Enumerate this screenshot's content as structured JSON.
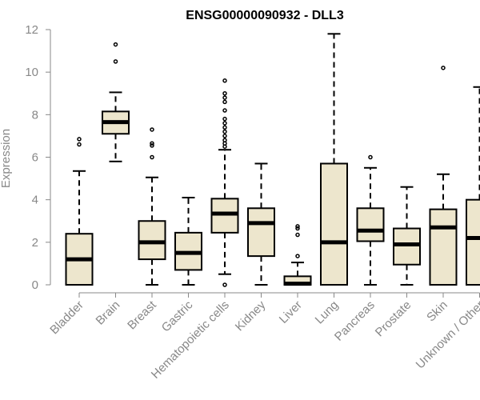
{
  "chart_data": {
    "type": "boxplot",
    "title": "ENSG00000090932 - DLL3",
    "xlabel": "",
    "ylabel": "Expression",
    "ylim": [
      0,
      12
    ],
    "yticks": [
      "0",
      "2",
      "4",
      "6",
      "8",
      "10",
      "12"
    ],
    "box_color": "#ede6cd",
    "categories": [
      "Bladder",
      "Brain",
      "Breast",
      "Gastric",
      "Hematopoietic cells",
      "Kidney",
      "Liver",
      "Lung",
      "Pancreas",
      "Prostate",
      "Skin",
      "Unknown / Other"
    ],
    "boxes": [
      {
        "category": "Bladder",
        "whisker_low": 0,
        "q1": 0,
        "median": 1.2,
        "q3": 2.4,
        "whisker_high": 5.35,
        "outliers": [
          6.6,
          6.85
        ]
      },
      {
        "category": "Brain",
        "whisker_low": 5.8,
        "q1": 7.1,
        "median": 7.65,
        "q3": 8.15,
        "whisker_high": 9.05,
        "outliers": [
          10.5,
          11.3
        ]
      },
      {
        "category": "Breast",
        "whisker_low": 0,
        "q1": 1.2,
        "median": 2.0,
        "q3": 3.0,
        "whisker_high": 5.05,
        "outliers": [
          6.0,
          6.55,
          6.65,
          7.3
        ]
      },
      {
        "category": "Gastric",
        "whisker_low": 0,
        "q1": 0.7,
        "median": 1.5,
        "q3": 2.45,
        "whisker_high": 4.1,
        "outliers": []
      },
      {
        "category": "Hematopoietic cells",
        "whisker_low": 0.5,
        "q1": 2.45,
        "median": 3.35,
        "q3": 4.05,
        "whisker_high": 6.35,
        "outliers": [
          0,
          6.5,
          6.65,
          6.8,
          7.0,
          7.2,
          7.4,
          7.6,
          7.8,
          8.2,
          8.6,
          8.8,
          9.0,
          9.6
        ]
      },
      {
        "category": "Kidney",
        "whisker_low": 0,
        "q1": 1.35,
        "median": 2.9,
        "q3": 3.6,
        "whisker_high": 5.7,
        "outliers": []
      },
      {
        "category": "Liver",
        "whisker_low": 0,
        "q1": 0,
        "median": 0.05,
        "q3": 0.4,
        "whisker_high": 1.05,
        "outliers": [
          1.35,
          2.35,
          2.65,
          2.75
        ]
      },
      {
        "category": "Lung",
        "whisker_low": 0,
        "q1": 0,
        "median": 2.0,
        "q3": 5.7,
        "whisker_high": 11.8,
        "outliers": []
      },
      {
        "category": "Pancreas",
        "whisker_low": 0,
        "q1": 2.05,
        "median": 2.55,
        "q3": 3.6,
        "whisker_high": 5.5,
        "outliers": [
          6.0
        ]
      },
      {
        "category": "Prostate",
        "whisker_low": 0,
        "q1": 0.95,
        "median": 1.9,
        "q3": 2.65,
        "whisker_high": 4.6,
        "outliers": []
      },
      {
        "category": "Skin",
        "whisker_low": 0,
        "q1": 0,
        "median": 2.7,
        "q3": 3.55,
        "whisker_high": 5.2,
        "outliers": [
          10.2
        ]
      },
      {
        "category": "Unknown / Other",
        "whisker_low": 0,
        "q1": 0,
        "median": 2.2,
        "q3": 4.0,
        "whisker_high": 9.3,
        "outliers": []
      }
    ]
  }
}
